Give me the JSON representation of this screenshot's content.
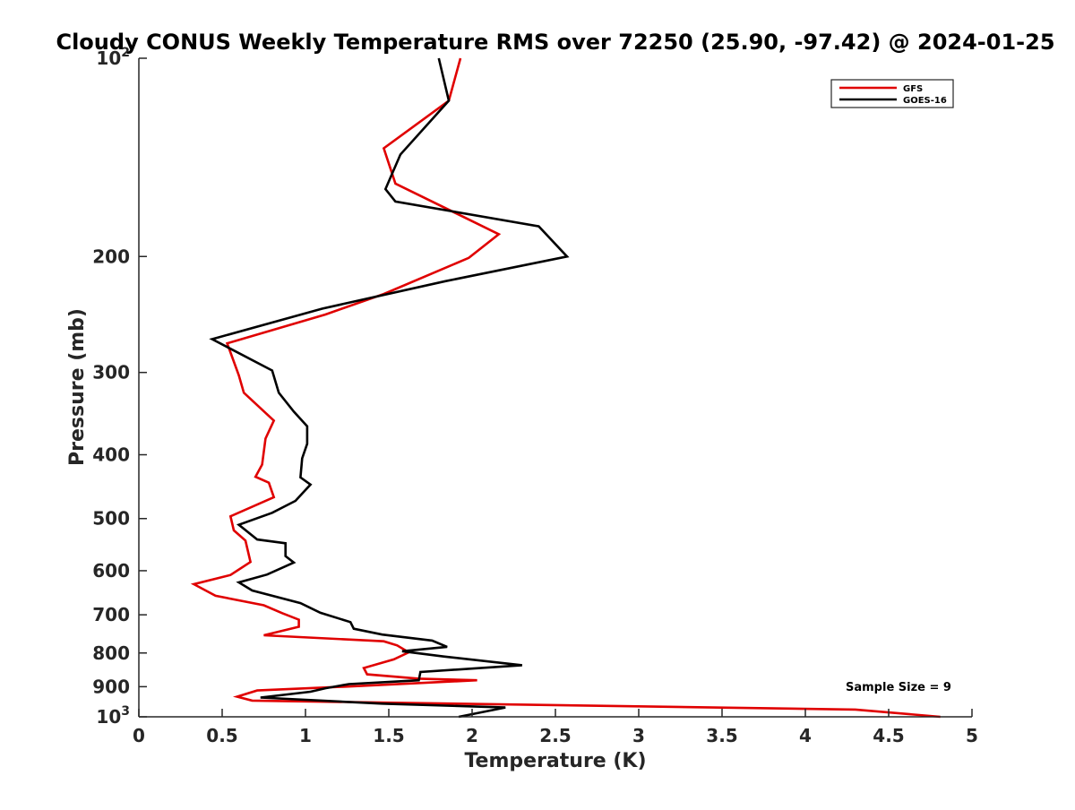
{
  "chart_data": {
    "type": "line",
    "title": "Cloudy CONUS Weekly Temperature RMS over 72250 (25.90, -97.42) @ 2024-01-25",
    "xlabel": "Temperature (K)",
    "ylabel": "Pressure (mb)",
    "xlim": [
      0,
      5
    ],
    "ylim": [
      1000,
      100
    ],
    "y_scale": "log",
    "y_direction": "reversed",
    "grid": false,
    "legend_position": "top-right",
    "x_ticks": [
      0,
      0.5,
      1,
      1.5,
      2,
      2.5,
      3,
      3.5,
      4,
      4.5,
      5
    ],
    "x_tick_labels": [
      "0",
      "0.5",
      "1",
      "1.5",
      "2",
      "2.5",
      "3",
      "3.5",
      "4",
      "4.5",
      "5"
    ],
    "y_ticks": [
      200,
      300,
      400,
      500,
      600,
      700,
      800,
      900
    ],
    "y_tick_labels": [
      "200",
      "300",
      "400",
      "500",
      "600",
      "700",
      "800",
      "900"
    ],
    "y_tick_top": {
      "base": "10",
      "exp": "2"
    },
    "y_tick_bottom": {
      "base": "10",
      "exp": "3"
    },
    "annotation": "Sample Size = 9",
    "series": [
      {
        "name": "GFS",
        "color": "#e00000",
        "points": [
          [
            1.93,
            100
          ],
          [
            1.86,
            116
          ],
          [
            1.47,
            137
          ],
          [
            1.54,
            155
          ],
          [
            2.16,
            185
          ],
          [
            1.98,
            201
          ],
          [
            1.47,
            228
          ],
          [
            1.12,
            245
          ],
          [
            0.53,
            271
          ],
          [
            0.6,
            303
          ],
          [
            0.63,
            322
          ],
          [
            0.81,
            355
          ],
          [
            0.76,
            378
          ],
          [
            0.74,
            414
          ],
          [
            0.7,
            432
          ],
          [
            0.78,
            441
          ],
          [
            0.81,
            464
          ],
          [
            0.55,
            496
          ],
          [
            0.57,
            521
          ],
          [
            0.64,
            540
          ],
          [
            0.67,
            582
          ],
          [
            0.55,
            609
          ],
          [
            0.33,
            629
          ],
          [
            0.46,
            655
          ],
          [
            0.75,
            677
          ],
          [
            0.86,
            696
          ],
          [
            0.96,
            712
          ],
          [
            0.96,
            730
          ],
          [
            0.75,
            752
          ],
          [
            1.47,
            768
          ],
          [
            1.55,
            779
          ],
          [
            1.62,
            798
          ],
          [
            1.53,
            818
          ],
          [
            1.35,
            843
          ],
          [
            1.37,
            862
          ],
          [
            1.68,
            875
          ],
          [
            2.03,
            880
          ],
          [
            1.23,
            900
          ],
          [
            0.71,
            912
          ],
          [
            0.59,
            932
          ],
          [
            0.68,
            945
          ],
          [
            4.3,
            975
          ],
          [
            4.81,
            1000
          ]
        ]
      },
      {
        "name": "GOES-16",
        "color": "#000000",
        "points": [
          [
            1.8,
            100
          ],
          [
            1.86,
            116
          ],
          [
            1.57,
            140
          ],
          [
            1.48,
            158
          ],
          [
            1.54,
            165
          ],
          [
            2.4,
            180
          ],
          [
            2.57,
            200
          ],
          [
            1.84,
            218
          ],
          [
            1.1,
            240
          ],
          [
            0.44,
            267
          ],
          [
            0.8,
            298
          ],
          [
            0.84,
            322
          ],
          [
            0.93,
            344
          ],
          [
            1.01,
            362
          ],
          [
            1.01,
            385
          ],
          [
            0.98,
            405
          ],
          [
            0.97,
            433
          ],
          [
            1.03,
            444
          ],
          [
            0.94,
            470
          ],
          [
            0.8,
            490
          ],
          [
            0.6,
            511
          ],
          [
            0.71,
            538
          ],
          [
            0.88,
            545
          ],
          [
            0.88,
            570
          ],
          [
            0.93,
            583
          ],
          [
            0.77,
            608
          ],
          [
            0.6,
            625
          ],
          [
            0.68,
            643
          ],
          [
            0.97,
            672
          ],
          [
            1.09,
            695
          ],
          [
            1.27,
            718
          ],
          [
            1.29,
            735
          ],
          [
            1.46,
            750
          ],
          [
            1.76,
            766
          ],
          [
            1.85,
            783
          ],
          [
            1.58,
            795
          ],
          [
            1.83,
            810
          ],
          [
            2.3,
            835
          ],
          [
            1.69,
            855
          ],
          [
            1.68,
            880
          ],
          [
            1.26,
            892
          ],
          [
            1.12,
            905
          ],
          [
            1.03,
            916
          ],
          [
            0.73,
            935
          ],
          [
            1.46,
            955
          ],
          [
            2.2,
            968
          ],
          [
            1.92,
            1000
          ]
        ]
      }
    ]
  }
}
